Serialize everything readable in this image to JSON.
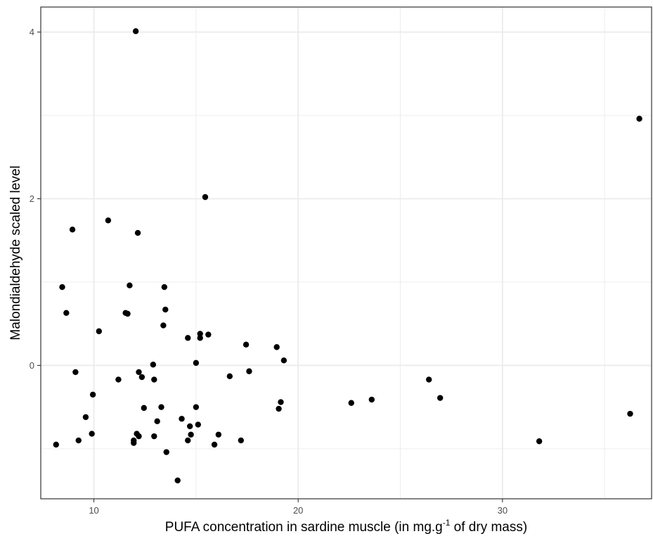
{
  "chart_data": {
    "type": "scatter",
    "title": "",
    "xlabel_parts": {
      "before": "PUFA concentration in sardine muscle (in mg.g",
      "superscript": "-1",
      "after": " of dry mass)"
    },
    "ylabel": "Malondialdehyde scaled level",
    "xlim": [
      7.4,
      37.3
    ],
    "ylim": [
      -1.6,
      4.3
    ],
    "x_ticks": [
      10,
      20,
      30
    ],
    "y_ticks": [
      0,
      2,
      4
    ],
    "x_tick_labels": [
      "10",
      "20",
      "30"
    ],
    "y_tick_labels": [
      "0",
      "2",
      "4"
    ],
    "grid": true,
    "legend": "none",
    "colors": {
      "point": "#000000",
      "grid": "#ebebeb",
      "panel_border": "#333333"
    },
    "points": [
      [
        12.05,
        4.01
      ],
      [
        36.7,
        2.96
      ],
      [
        15.45,
        2.02
      ],
      [
        8.95,
        1.63
      ],
      [
        10.7,
        1.74
      ],
      [
        12.15,
        1.59
      ],
      [
        8.45,
        0.94
      ],
      [
        11.75,
        0.96
      ],
      [
        13.45,
        0.94
      ],
      [
        8.65,
        0.63
      ],
      [
        11.55,
        0.63
      ],
      [
        11.65,
        0.62
      ],
      [
        13.5,
        0.67
      ],
      [
        13.4,
        0.48
      ],
      [
        10.25,
        0.41
      ],
      [
        15.2,
        0.38
      ],
      [
        15.6,
        0.37
      ],
      [
        15.2,
        0.33
      ],
      [
        14.6,
        0.33
      ],
      [
        17.45,
        0.25
      ],
      [
        18.95,
        0.22
      ],
      [
        19.3,
        0.06
      ],
      [
        15.0,
        0.03
      ],
      [
        12.9,
        0.01
      ],
      [
        9.1,
        -0.08
      ],
      [
        12.2,
        -0.08
      ],
      [
        17.6,
        -0.07
      ],
      [
        12.35,
        -0.14
      ],
      [
        16.65,
        -0.13
      ],
      [
        11.2,
        -0.17
      ],
      [
        12.95,
        -0.17
      ],
      [
        26.4,
        -0.17
      ],
      [
        9.95,
        -0.35
      ],
      [
        22.6,
        -0.45
      ],
      [
        23.6,
        -0.41
      ],
      [
        26.95,
        -0.39
      ],
      [
        19.15,
        -0.44
      ],
      [
        19.05,
        -0.52
      ],
      [
        13.3,
        -0.5
      ],
      [
        12.45,
        -0.51
      ],
      [
        15.0,
        -0.5
      ],
      [
        9.6,
        -0.62
      ],
      [
        36.25,
        -0.58
      ],
      [
        14.3,
        -0.64
      ],
      [
        13.1,
        -0.67
      ],
      [
        15.1,
        -0.71
      ],
      [
        14.7,
        -0.73
      ],
      [
        9.9,
        -0.82
      ],
      [
        12.1,
        -0.82
      ],
      [
        16.1,
        -0.83
      ],
      [
        14.75,
        -0.83
      ],
      [
        12.2,
        -0.85
      ],
      [
        12.95,
        -0.85
      ],
      [
        9.25,
        -0.9
      ],
      [
        11.95,
        -0.9
      ],
      [
        17.2,
        -0.9
      ],
      [
        14.6,
        -0.9
      ],
      [
        31.8,
        -0.91
      ],
      [
        11.95,
        -0.93
      ],
      [
        8.15,
        -0.95
      ],
      [
        15.9,
        -0.95
      ],
      [
        13.55,
        -1.04
      ],
      [
        14.1,
        -1.38
      ]
    ]
  }
}
